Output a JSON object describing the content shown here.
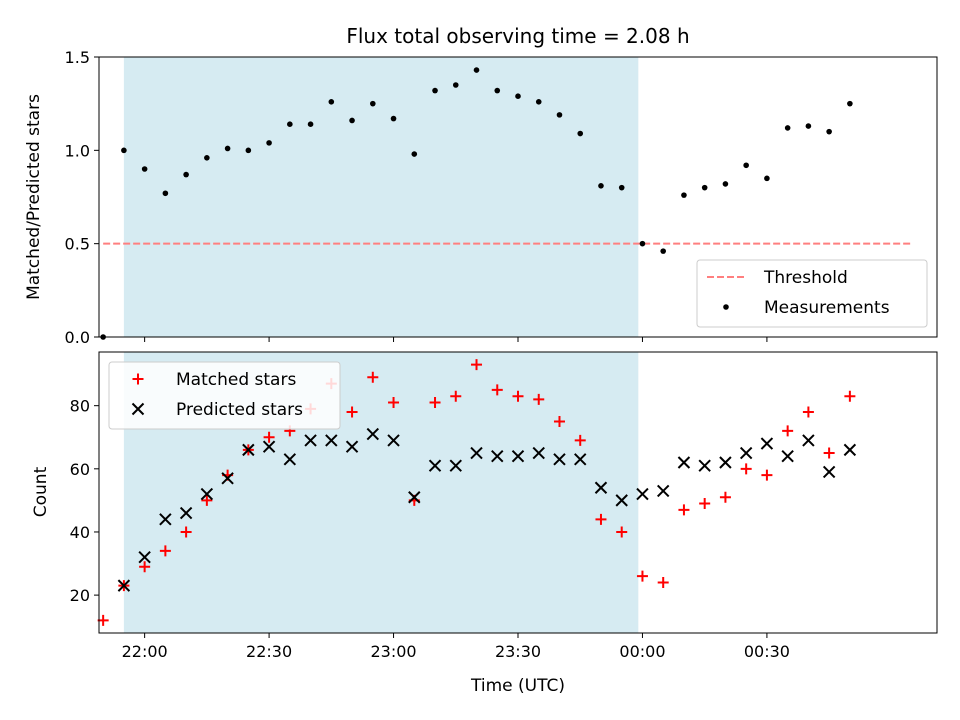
{
  "chart_data": [
    {
      "type": "scatter",
      "title": "Flux total observing time = 2.08 h",
      "xlabel": "",
      "ylabel": "Matched/Predicted stars",
      "xlim": [
        "21:49",
        "01:11"
      ],
      "ylim": [
        0,
        1.5
      ],
      "yticks": [
        "0.0",
        "0.5",
        "1.0",
        "1.5"
      ],
      "shaded_region": {
        "from": "21:55",
        "to": "23:59",
        "color": "#add8e6"
      },
      "grid": false,
      "legend_position": "lower-right",
      "series": [
        {
          "name": "Threshold",
          "style": "dashed-line",
          "color": "#ff7f7f",
          "x": [
            "21:50",
            "01:05"
          ],
          "y": [
            0.5,
            0.5
          ]
        },
        {
          "name": "Measurements",
          "style": "dot",
          "color": "#000000",
          "x": [
            "21:50",
            "21:55",
            "22:00",
            "22:05",
            "22:10",
            "22:15",
            "22:20",
            "22:25",
            "22:30",
            "22:35",
            "22:40",
            "22:45",
            "22:50",
            "22:55",
            "23:00",
            "23:05",
            "23:10",
            "23:15",
            "23:20",
            "23:25",
            "23:30",
            "23:35",
            "23:40",
            "23:45",
            "23:50",
            "23:55",
            "00:00",
            "00:05",
            "00:10",
            "00:15",
            "00:20",
            "00:25",
            "00:30",
            "00:35",
            "00:40",
            "00:45",
            "00:50"
          ],
          "y": [
            0.0,
            1.0,
            0.9,
            0.77,
            0.87,
            0.96,
            1.01,
            1.0,
            1.04,
            1.14,
            1.14,
            1.26,
            1.16,
            1.25,
            1.17,
            0.98,
            1.32,
            1.35,
            1.43,
            1.32,
            1.29,
            1.26,
            1.19,
            1.09,
            0.81,
            0.8,
            0.5,
            0.46,
            0.76,
            0.8,
            0.82,
            0.92,
            0.85,
            1.12,
            1.13,
            1.1,
            1.25
          ]
        }
      ]
    },
    {
      "type": "scatter",
      "title": "",
      "xlabel": "Time (UTC)",
      "ylabel": "Count",
      "xlim": [
        "21:49",
        "01:11"
      ],
      "ylim": [
        8,
        97
      ],
      "yticks": [
        "20",
        "40",
        "60",
        "80"
      ],
      "xticks": [
        "22:00",
        "22:30",
        "23:00",
        "23:30",
        "00:00",
        "00:30"
      ],
      "shaded_region": {
        "from": "21:55",
        "to": "23:59",
        "color": "#add8e6"
      },
      "grid": false,
      "legend_position": "upper-left",
      "series": [
        {
          "name": "Matched stars",
          "marker": "plus",
          "color": "#ff0000",
          "x": [
            "21:50",
            "21:55",
            "22:00",
            "22:05",
            "22:10",
            "22:15",
            "22:20",
            "22:25",
            "22:30",
            "22:35",
            "22:40",
            "22:45",
            "22:50",
            "22:55",
            "23:00",
            "23:05",
            "23:10",
            "23:15",
            "23:20",
            "23:25",
            "23:30",
            "23:35",
            "23:40",
            "23:45",
            "23:50",
            "23:55",
            "00:00",
            "00:05",
            "00:10",
            "00:15",
            "00:20",
            "00:25",
            "00:30",
            "00:35",
            "00:40",
            "00:45",
            "00:50"
          ],
          "y": [
            12,
            23,
            29,
            34,
            40,
            50,
            58,
            66,
            70,
            72,
            79,
            87,
            78,
            89,
            81,
            50,
            81,
            83,
            93,
            85,
            83,
            82,
            75,
            69,
            44,
            40,
            26,
            24,
            47,
            49,
            51,
            60,
            58,
            72,
            78,
            65,
            83
          ]
        },
        {
          "name": "Predicted stars",
          "marker": "x",
          "color": "#000000",
          "x": [
            "21:55",
            "22:00",
            "22:05",
            "22:10",
            "22:15",
            "22:20",
            "22:25",
            "22:30",
            "22:35",
            "22:40",
            "22:45",
            "22:50",
            "22:55",
            "23:00",
            "23:05",
            "23:10",
            "23:15",
            "23:20",
            "23:25",
            "23:30",
            "23:35",
            "23:40",
            "23:45",
            "23:50",
            "23:55",
            "00:00",
            "00:05",
            "00:10",
            "00:15",
            "00:20",
            "00:25",
            "00:30",
            "00:35",
            "00:40",
            "00:45",
            "00:50"
          ],
          "y": [
            23,
            32,
            44,
            46,
            52,
            57,
            66,
            67,
            63,
            69,
            69,
            67,
            71,
            69,
            51,
            61,
            61,
            65,
            64,
            64,
            65,
            63,
            63,
            54,
            50,
            52,
            53,
            62,
            61,
            62,
            65,
            68,
            64,
            69,
            59,
            66
          ]
        }
      ]
    }
  ]
}
